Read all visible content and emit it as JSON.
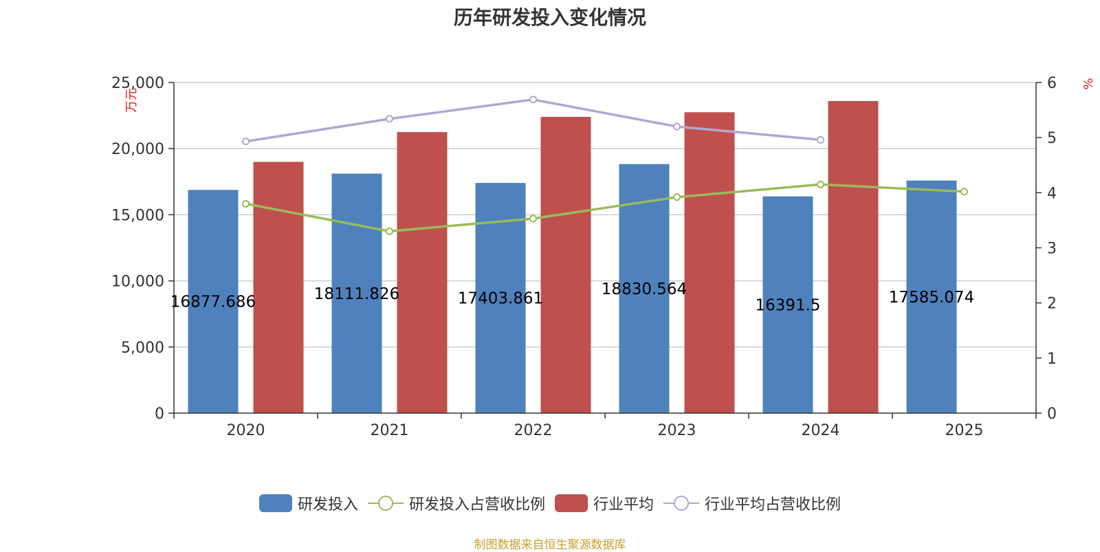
{
  "chart_data": {
    "type": "bar",
    "title": "历年研发投入变化情况",
    "categories": [
      "2020",
      "2021",
      "2022",
      "2023",
      "2024",
      "2025"
    ],
    "left_axis": {
      "unit": "万元",
      "ticks": [
        "0",
        "5,000",
        "10,000",
        "15,000",
        "20,000",
        "25,000"
      ],
      "ylim": [
        0,
        25000
      ]
    },
    "right_axis": {
      "unit": "%",
      "ticks": [
        "0",
        "1",
        "2",
        "3",
        "4",
        "5",
        "6"
      ],
      "ylim": [
        0,
        6
      ]
    },
    "series": [
      {
        "name": "研发投入",
        "kind": "bar",
        "axis": "left",
        "color": "#4f81bd",
        "values": [
          16877.686,
          18111.826,
          17403.861,
          18830.564,
          16391.5,
          17585.074
        ],
        "labels": [
          "16877.686",
          "18111.826",
          "17403.861",
          "18830.564",
          "16391.5",
          "17585.074"
        ]
      },
      {
        "name": "研发投入占营收比例",
        "kind": "line",
        "axis": "right",
        "color": "#9bbb59",
        "values": [
          3.8,
          3.3,
          3.53,
          3.92,
          4.15,
          4.02
        ]
      },
      {
        "name": "行业平均",
        "kind": "bar",
        "axis": "left",
        "color": "#c0504d",
        "values": [
          19000,
          21250,
          22400,
          22750,
          23600,
          null
        ]
      },
      {
        "name": "行业平均占营收比例",
        "kind": "line",
        "axis": "right",
        "color": "#b3a6d1",
        "values": [
          4.93,
          5.34,
          5.69,
          5.2,
          4.96,
          null
        ]
      }
    ],
    "grid": true,
    "legend_position": "bottom"
  },
  "footer": {
    "source": "制图数据来自恒生聚源数据库"
  }
}
